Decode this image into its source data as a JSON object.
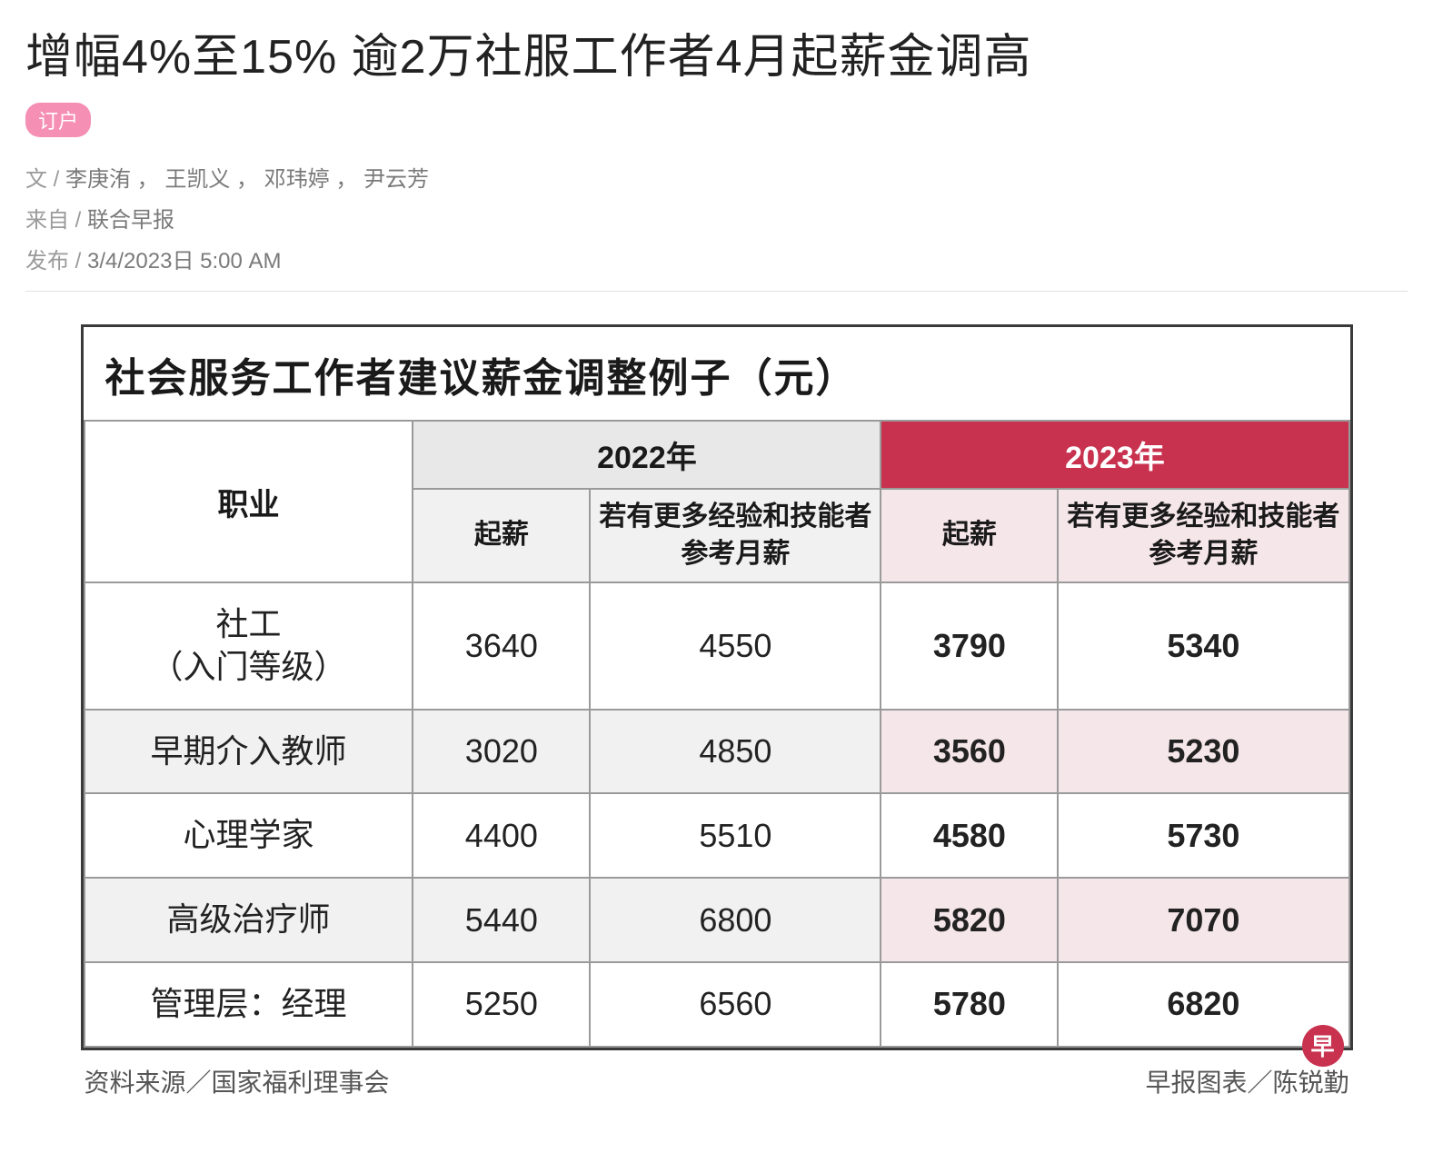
{
  "article": {
    "headline": "增幅4%至15% 逾2万社服工作者4月起薪金调高",
    "badge": "订户",
    "byline_label": "文 /",
    "byline_authors": "李庚洧 ， 王凯义 ， 邓玮婷 ， 尹云芳",
    "source_label": "来自 /",
    "source_value": "联合早报",
    "publish_label": "发布 /",
    "publish_value": "3/4/2023日 5:00 AM"
  },
  "table": {
    "type": "table",
    "title": "社会服务工作者建议薪金调整例子（元）",
    "col_occupation": "职业",
    "year_2022": "2022年",
    "year_2023": "2023年",
    "sub_start": "起薪",
    "sub_exp": "若有更多经验和技能者参考月薪",
    "rows": [
      {
        "occ_l1": "社工",
        "occ_l2": "（入门等级）",
        "s22": "3640",
        "e22": "4550",
        "s23": "3790",
        "e23": "5340"
      },
      {
        "occ_l1": "早期介入教师",
        "occ_l2": "",
        "s22": "3020",
        "e22": "4850",
        "s23": "3560",
        "e23": "5230"
      },
      {
        "occ_l1": "心理学家",
        "occ_l2": "",
        "s22": "4400",
        "e22": "5510",
        "s23": "4580",
        "e23": "5730"
      },
      {
        "occ_l1": "高级治疗师",
        "occ_l2": "",
        "s22": "5440",
        "e22": "6800",
        "s23": "5820",
        "e23": "7070"
      },
      {
        "occ_l1": "管理层：经理",
        "occ_l2": "",
        "s22": "5250",
        "e22": "6560",
        "s23": "5780",
        "e23": "6820"
      }
    ],
    "source_note": "资料来源／国家福利理事会",
    "credit_note": "早报图表／陈锐勤",
    "logo_glyph": "早",
    "colors": {
      "header_2023_bg": "#c8324f",
      "header_2022_bg": "#e8e8e8",
      "cell_2023_bg": "#f5e6ea",
      "border": "#9a9a9a",
      "outer_border": "#3a3a3a"
    },
    "column_widths_pct": [
      26,
      14,
      23,
      14,
      23
    ]
  }
}
